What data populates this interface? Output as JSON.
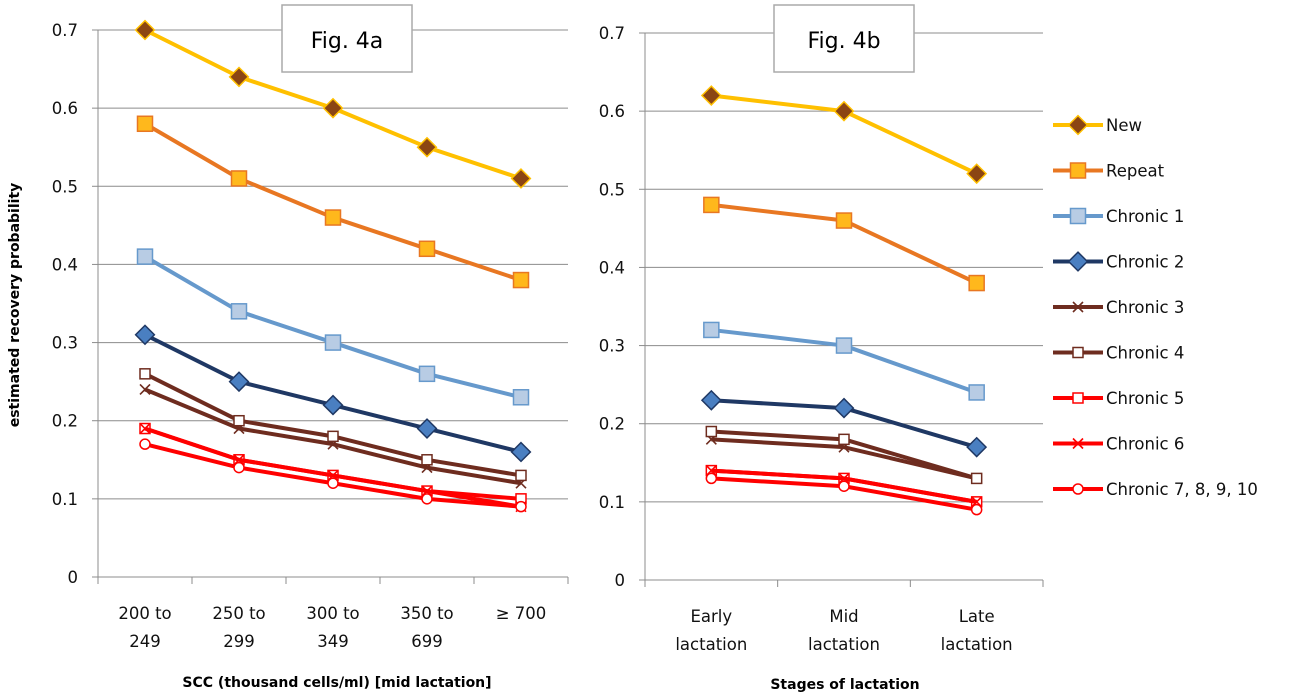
{
  "chart_data": [
    {
      "type": "line",
      "panel_label": "Fig. 4a",
      "xlabel": "SCC (thousand cells/ml) [mid lactation]",
      "ylabel": "estimated recovery probability",
      "categories": [
        [
          "200 to",
          "249"
        ],
        [
          "250 to",
          "299"
        ],
        [
          "300 to",
          "349"
        ],
        [
          "350 to",
          "699"
        ],
        [
          "≥ 700"
        ]
      ],
      "ylim": [
        0,
        0.7
      ],
      "yticks": [
        "0",
        "0.1",
        "0.2",
        "0.3",
        "0.4",
        "0.5",
        "0.6",
        "0.7"
      ],
      "grid": true,
      "series": [
        {
          "name": "New",
          "values": [
            0.7,
            0.64,
            0.6,
            0.55,
            0.51
          ]
        },
        {
          "name": "Repeat",
          "values": [
            0.58,
            0.51,
            0.46,
            0.42,
            0.38
          ]
        },
        {
          "name": "Chronic 1",
          "values": [
            0.41,
            0.34,
            0.3,
            0.26,
            0.23
          ]
        },
        {
          "name": "Chronic 2",
          "values": [
            0.31,
            0.25,
            0.22,
            0.19,
            0.16
          ]
        },
        {
          "name": "Chronic 3",
          "values": [
            0.24,
            0.19,
            0.17,
            0.14,
            0.12
          ]
        },
        {
          "name": "Chronic 4",
          "values": [
            0.26,
            0.2,
            0.18,
            0.15,
            0.13
          ]
        },
        {
          "name": "Chronic 5",
          "values": [
            0.19,
            0.15,
            0.13,
            0.11,
            0.1
          ]
        },
        {
          "name": "Chronic 6",
          "values": [
            0.19,
            0.15,
            0.13,
            0.11,
            0.09
          ]
        },
        {
          "name": "Chronic 7, 8, 9, 10",
          "values": [
            0.17,
            0.14,
            0.12,
            0.1,
            0.09
          ]
        }
      ]
    },
    {
      "type": "line",
      "panel_label": "Fig. 4b",
      "xlabel": "Stages of lactation",
      "ylabel": "",
      "categories": [
        [
          "Early",
          "lactation"
        ],
        [
          "Mid",
          "lactation"
        ],
        [
          "Late",
          "lactation"
        ]
      ],
      "ylim": [
        0,
        0.7
      ],
      "yticks": [
        "0",
        "0.1",
        "0.2",
        "0.3",
        "0.4",
        "0.5",
        "0.6",
        "0.7"
      ],
      "grid": true,
      "legend_position": "right",
      "series": [
        {
          "name": "New",
          "values": [
            0.62,
            0.6,
            0.52
          ]
        },
        {
          "name": "Repeat",
          "values": [
            0.48,
            0.46,
            0.38
          ]
        },
        {
          "name": "Chronic 1",
          "values": [
            0.32,
            0.3,
            0.24
          ]
        },
        {
          "name": "Chronic 2",
          "values": [
            0.23,
            0.22,
            0.17
          ]
        },
        {
          "name": "Chronic 3",
          "values": [
            0.18,
            0.17,
            0.13
          ]
        },
        {
          "name": "Chronic 4",
          "values": [
            0.19,
            0.18,
            0.13
          ]
        },
        {
          "name": "Chronic 5",
          "values": [
            0.14,
            0.13,
            0.1
          ]
        },
        {
          "name": "Chronic 6",
          "values": [
            0.14,
            0.13,
            0.1
          ]
        },
        {
          "name": "Chronic 7, 8, 9, 10",
          "values": [
            0.13,
            0.12,
            0.09
          ]
        }
      ]
    }
  ],
  "series_styles": [
    {
      "color": "#FFC000",
      "marker": "diamond",
      "marker_fill": "#8B4513",
      "marker_stroke": "#FFC000"
    },
    {
      "color": "#E87722",
      "marker": "square",
      "marker_fill": "#FFB81C",
      "marker_stroke": "#E87722"
    },
    {
      "color": "#6699CC",
      "marker": "square",
      "marker_fill": "#B8CCE4",
      "marker_stroke": "#6699CC"
    },
    {
      "color": "#1F3864",
      "marker": "diamond",
      "marker_fill": "#4A7FC1",
      "marker_stroke": "#1F3864"
    },
    {
      "color": "#6E2C1F",
      "marker": "x",
      "marker_fill": "none",
      "marker_stroke": "#6E2C1F"
    },
    {
      "color": "#6E2C1F",
      "marker": "square-open",
      "marker_fill": "#ffffff",
      "marker_stroke": "#6E2C1F"
    },
    {
      "color": "#FF0000",
      "marker": "square-open",
      "marker_fill": "#ffffff",
      "marker_stroke": "#FF0000"
    },
    {
      "color": "#FF0000",
      "marker": "x",
      "marker_fill": "none",
      "marker_stroke": "#FF0000"
    },
    {
      "color": "#FF0000",
      "marker": "circle-open",
      "marker_fill": "#ffffff",
      "marker_stroke": "#FF0000"
    }
  ]
}
